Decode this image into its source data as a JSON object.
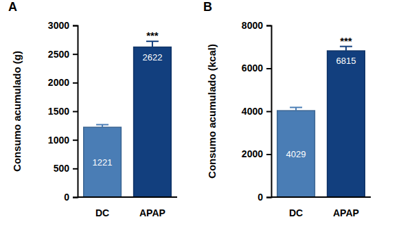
{
  "chart_data": [
    {
      "type": "bar",
      "title": "A",
      "y_label": "Consumo acumulado (g)",
      "categories": [
        "DC",
        "APAP"
      ],
      "values": [
        1221,
        2622
      ],
      "errors": [
        45,
        100
      ],
      "colors": [
        "#4a7db5",
        "#123f7e"
      ],
      "ylim": [
        0,
        3000
      ],
      "yticks": [
        0,
        500,
        1000,
        1500,
        2000,
        2500,
        3000
      ],
      "data_labels": true,
      "annotations": [
        {
          "category": "APAP",
          "text": "***"
        }
      ]
    },
    {
      "type": "bar",
      "title": "B",
      "y_label": "Consumo acumulado (kcal)",
      "categories": [
        "DC",
        "APAP"
      ],
      "values": [
        4029,
        6815
      ],
      "errors": [
        150,
        205
      ],
      "colors": [
        "#4a7db5",
        "#123f7e"
      ],
      "ylim": [
        0,
        8000
      ],
      "yticks": [
        0,
        2000,
        4000,
        6000,
        8000
      ],
      "data_labels": true,
      "annotations": [
        {
          "category": "APAP",
          "text": "***"
        }
      ]
    }
  ]
}
